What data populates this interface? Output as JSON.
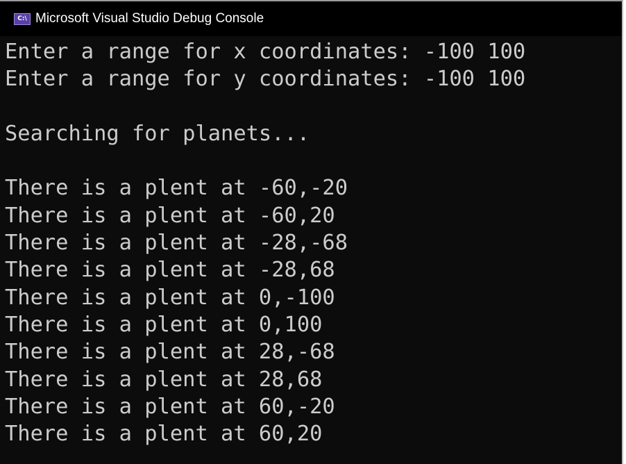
{
  "window": {
    "title": "Microsoft Visual Studio Debug Console",
    "icon": "console-app-icon",
    "icon_text": "C:\\"
  },
  "console": {
    "lines": [
      "Enter a range for x coordinates: -100 100",
      "Enter a range for y coordinates: -100 100",
      "",
      "Searching for planets...",
      "",
      "There is a plent at -60,-20",
      "There is a plent at -60,20",
      "There is a plent at -28,-68",
      "There is a plent at -28,68",
      "There is a plent at 0,-100",
      "There is a plent at 0,100",
      "There is a plent at 28,-68",
      "There is a plent at 28,68",
      "There is a plent at 60,-20",
      "There is a plent at 60,20"
    ]
  },
  "colors": {
    "background": "#0c0c0c",
    "text": "#cccccc",
    "titlebar": "#000000"
  }
}
